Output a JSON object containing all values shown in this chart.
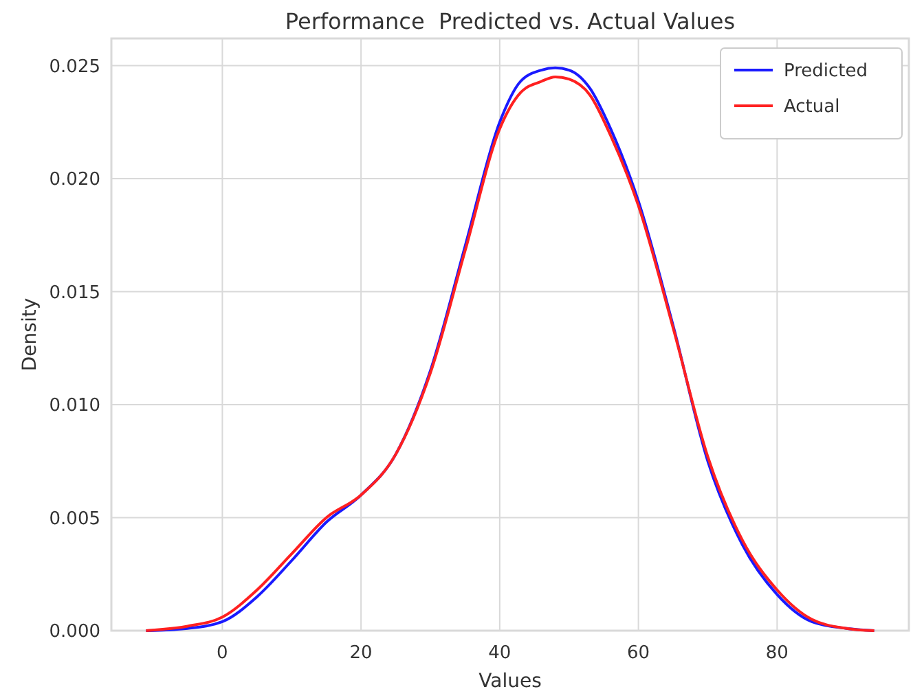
{
  "chart_data": {
    "type": "line",
    "title": "Performance  Predicted vs. Actual Values",
    "xlabel": "Values",
    "ylabel": "Density",
    "xlim": [
      -16,
      99
    ],
    "ylim": [
      0,
      0.0262
    ],
    "xticks": [
      0,
      20,
      40,
      60,
      80
    ],
    "yticks": [
      {
        "value": 0,
        "label": "0.000"
      },
      {
        "value": 0.005,
        "label": "0.005"
      },
      {
        "value": 0.01,
        "label": "0.010"
      },
      {
        "value": 0.015,
        "label": "0.015"
      },
      {
        "value": 0.02,
        "label": "0.020"
      },
      {
        "value": 0.025,
        "label": "0.025"
      }
    ],
    "grid": true,
    "legend": "top right",
    "line_style": "solid",
    "series": [
      {
        "name": "Predicted",
        "color": "#1a1aff",
        "x": [
          -11,
          -5,
          0,
          5,
          10,
          15,
          20,
          25,
          30,
          35,
          40,
          43,
          46,
          48,
          50,
          53,
          56,
          60,
          65,
          70,
          75,
          80,
          85,
          90,
          94
        ],
        "values": [
          0,
          0.0001,
          0.0004,
          0.0015,
          0.0031,
          0.0048,
          0.006,
          0.0078,
          0.0115,
          0.017,
          0.0225,
          0.0243,
          0.0248,
          0.0249,
          0.0248,
          0.024,
          0.0222,
          0.019,
          0.0135,
          0.0075,
          0.0038,
          0.0016,
          0.0004,
          0.0001,
          0
        ]
      },
      {
        "name": "Actual",
        "color": "#ff2020",
        "x": [
          -11,
          -5,
          0,
          5,
          10,
          15,
          20,
          25,
          30,
          35,
          40,
          43,
          46,
          48,
          50,
          53,
          56,
          60,
          65,
          70,
          75,
          80,
          85,
          90,
          94
        ],
        "values": [
          0,
          0.0002,
          0.0006,
          0.0018,
          0.0034,
          0.005,
          0.006,
          0.0078,
          0.0114,
          0.0168,
          0.0222,
          0.0238,
          0.0243,
          0.0245,
          0.0244,
          0.0237,
          0.0219,
          0.0188,
          0.0134,
          0.0077,
          0.004,
          0.0018,
          0.0005,
          0.0001,
          0
        ]
      }
    ]
  }
}
